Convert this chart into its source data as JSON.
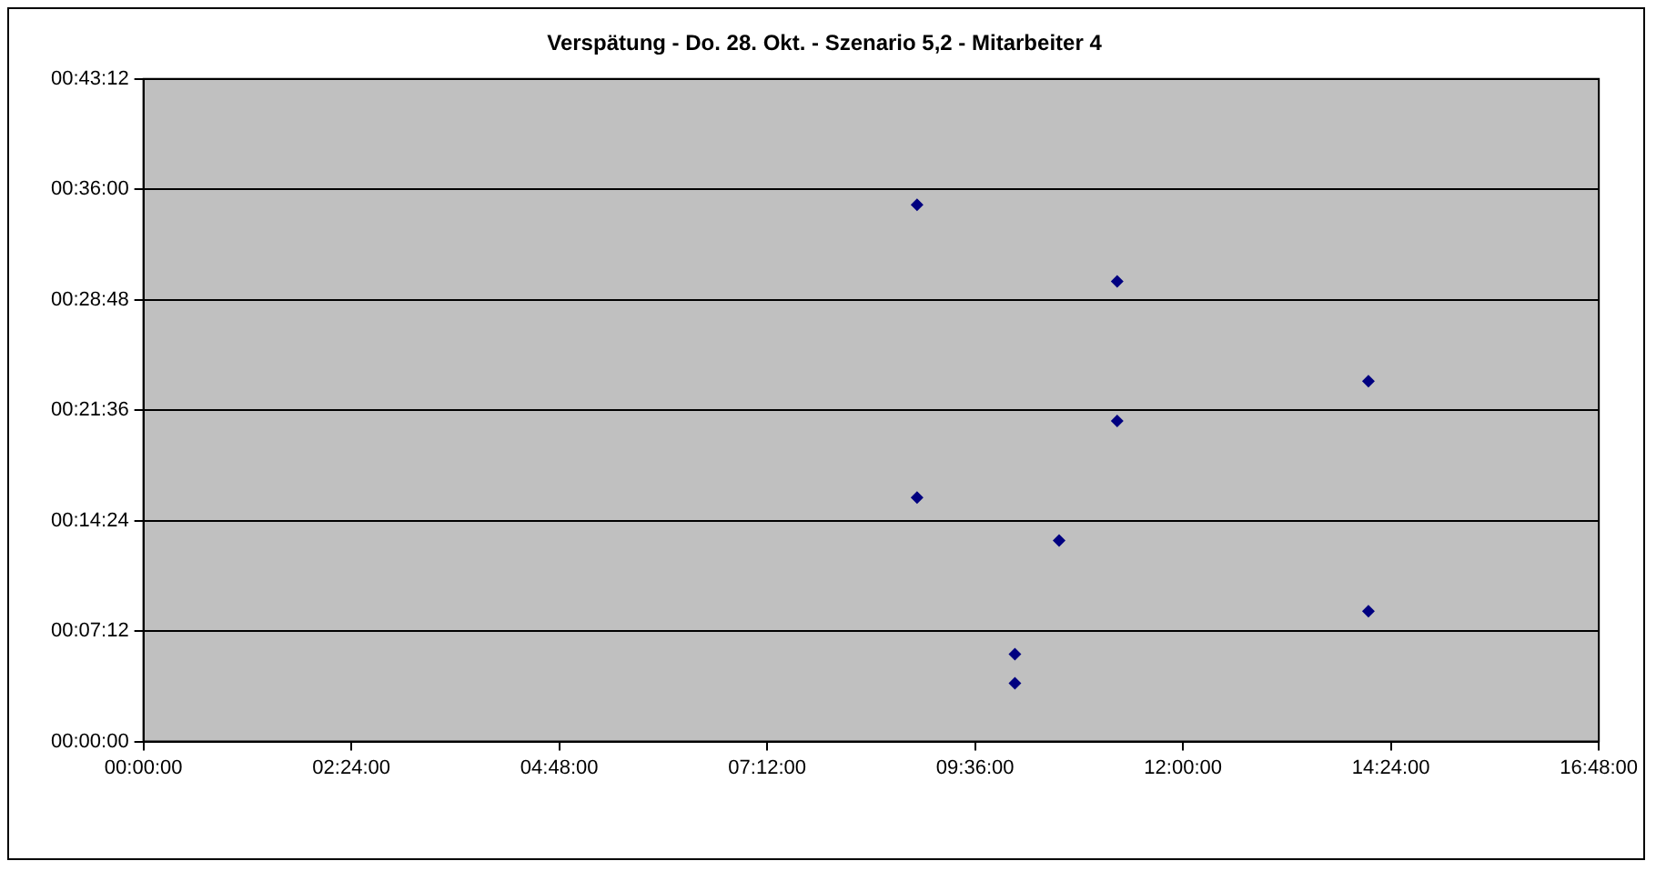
{
  "chart_data": {
    "type": "scatter",
    "title": "Verspätung - Do. 28. Okt. - Szenario 5,2 - Mitarbeiter 4",
    "x": [
      8.93,
      11.24,
      14.14,
      11.24,
      8.93,
      10.57,
      14.14,
      10.06,
      10.06
    ],
    "series": [
      {
        "color": "#000080",
        "values": [
          35.0,
          30.0,
          23.5,
          20.9,
          15.9,
          13.1,
          8.5,
          5.7,
          3.8
        ]
      }
    ],
    "xlim": [
      0,
      16.8
    ],
    "xticks": [
      {
        "value": 0,
        "label": "00:00:00"
      },
      {
        "value": 2.4,
        "label": "02:24:00"
      },
      {
        "value": 4.8,
        "label": "04:48:00"
      },
      {
        "value": 7.2,
        "label": "07:12:00"
      },
      {
        "value": 9.6,
        "label": "09:36:00"
      },
      {
        "value": 12,
        "label": "12:00:00"
      },
      {
        "value": 14.4,
        "label": "14:24:00"
      },
      {
        "value": 16.8,
        "label": "16:48:00"
      }
    ],
    "ylim": [
      0,
      43.2
    ],
    "yticks": [
      {
        "value": 0,
        "label": "00:00:00"
      },
      {
        "value": 7.2,
        "label": "00:07:12"
      },
      {
        "value": 14.4,
        "label": "00:14:24"
      },
      {
        "value": 21.6,
        "label": "00:21:36"
      },
      {
        "value": 28.8,
        "label": "00:28:48"
      },
      {
        "value": 36,
        "label": "00:36:00"
      },
      {
        "value": 43.2,
        "label": "00:43:12"
      }
    ],
    "grid": "y",
    "legend": false,
    "marker": "diamond"
  }
}
